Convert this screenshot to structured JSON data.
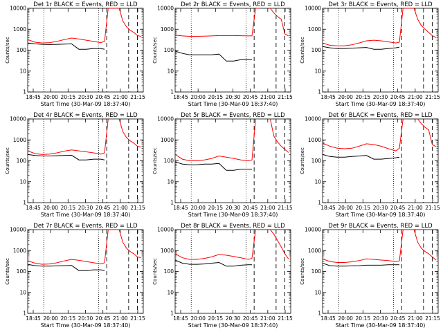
{
  "colors": {
    "events": "#000000",
    "lld": "#ff0000",
    "axes": "#000000",
    "background": "#ffffff"
  },
  "shared": {
    "ylabel": "Counts/sec",
    "xlabel": "Start Time (30-Mar-09 18:37:40)",
    "y_scale": "log",
    "ylim": [
      1,
      10000
    ],
    "y_ticks": [
      "1",
      "10",
      "100",
      "1000",
      "10000"
    ],
    "x_ticks": [
      "18:45",
      "20:00",
      "20:15",
      "20:30",
      "20:45",
      "21:00",
      "21:15"
    ],
    "x_range_minutes_from_start": [
      0,
      158
    ]
  },
  "chart_data": [
    {
      "type": "line",
      "title": "Det 1r BLACK = Events, RED = LLD",
      "x": [
        0,
        10,
        20,
        30,
        40,
        50,
        60,
        70,
        80,
        90,
        100,
        105,
        110,
        115,
        120,
        125,
        130,
        135,
        140,
        145,
        150,
        155
      ],
      "series": [
        {
          "name": "Events",
          "color": "#000000",
          "values": [
            220,
            200,
            190,
            185,
            190,
            195,
            200,
            110,
            110,
            120,
            120,
            110,
            null,
            null,
            null,
            null,
            null,
            null,
            null,
            null,
            null,
            null
          ]
        },
        {
          "name": "LLD",
          "color": "#ff0000",
          "values": [
            320,
            240,
            220,
            230,
            260,
            320,
            380,
            340,
            300,
            260,
            230,
            260,
            10000,
            10000,
            10000,
            10000,
            2500,
            1300,
            900,
            700,
            500,
            450
          ]
        }
      ]
    },
    {
      "type": "line",
      "title": "Det 2r BLACK = Events, RED = LLD",
      "x": [
        0,
        10,
        20,
        30,
        40,
        50,
        60,
        70,
        80,
        90,
        100,
        105,
        110,
        115,
        120,
        125,
        130,
        135,
        140,
        145,
        150,
        155
      ],
      "series": [
        {
          "name": "Events",
          "color": "#000000",
          "values": [
            90,
            70,
            60,
            60,
            60,
            60,
            65,
            30,
            30,
            35,
            35,
            35,
            null,
            null,
            null,
            null,
            null,
            null,
            null,
            null,
            null,
            null
          ]
        },
        {
          "name": "LLD",
          "color": "#ff0000",
          "values": [
            520,
            480,
            460,
            460,
            470,
            480,
            500,
            500,
            500,
            490,
            480,
            480,
            10000,
            10000,
            null,
            null,
            10000,
            6000,
            4000,
            3000,
            600,
            480
          ]
        }
      ]
    },
    {
      "type": "line",
      "title": "Det 3r BLACK = Events, RED = LLD",
      "x": [
        0,
        10,
        20,
        30,
        40,
        50,
        60,
        70,
        80,
        90,
        100,
        105,
        110,
        115,
        120,
        125,
        130,
        135,
        140,
        145,
        150,
        155
      ],
      "series": [
        {
          "name": "Events",
          "color": "#000000",
          "values": [
            150,
            130,
            120,
            120,
            125,
            130,
            135,
            110,
            110,
            120,
            130,
            140,
            null,
            null,
            null,
            null,
            null,
            null,
            null,
            null,
            null,
            null
          ]
        },
        {
          "name": "LLD",
          "color": "#ff0000",
          "values": [
            220,
            170,
            160,
            160,
            180,
            220,
            280,
            300,
            280,
            250,
            220,
            240,
            10000,
            10000,
            10000,
            10000,
            3000,
            1500,
            1000,
            700,
            500,
            400
          ]
        }
      ]
    },
    {
      "type": "line",
      "title": "Det 4r BLACK = Events, RED = LLD",
      "x": [
        0,
        10,
        20,
        30,
        40,
        50,
        60,
        70,
        80,
        90,
        100,
        105,
        110,
        115,
        120,
        125,
        130,
        135,
        140,
        145,
        150,
        155
      ],
      "series": [
        {
          "name": "Events",
          "color": "#000000",
          "values": [
            200,
            180,
            170,
            170,
            175,
            180,
            185,
            110,
            110,
            120,
            120,
            110,
            null,
            null,
            null,
            null,
            null,
            null,
            null,
            null,
            null,
            null
          ]
        },
        {
          "name": "LLD",
          "color": "#ff0000",
          "values": [
            300,
            220,
            200,
            210,
            240,
            290,
            330,
            300,
            270,
            240,
            210,
            240,
            10000,
            10000,
            10000,
            10000,
            2500,
            1300,
            900,
            700,
            500,
            450
          ]
        }
      ]
    },
    {
      "type": "line",
      "title": "Det 5r BLACK = Events, RED = LLD",
      "x": [
        0,
        10,
        20,
        30,
        40,
        50,
        60,
        70,
        80,
        90,
        100,
        105,
        110,
        115,
        120,
        125,
        130,
        135,
        140,
        145,
        150,
        155
      ],
      "series": [
        {
          "name": "Events",
          "color": "#000000",
          "values": [
            90,
            70,
            65,
            65,
            70,
            70,
            75,
            35,
            35,
            40,
            40,
            40,
            null,
            null,
            null,
            null,
            null,
            null,
            null,
            null,
            null,
            null
          ]
        },
        {
          "name": "LLD",
          "color": "#ff0000",
          "values": [
            200,
            120,
            100,
            100,
            110,
            130,
            170,
            150,
            130,
            110,
            100,
            110,
            10000,
            10000,
            null,
            null,
            10000,
            1500,
            800,
            500,
            350,
            250
          ]
        }
      ]
    },
    {
      "type": "line",
      "title": "Det 6r BLACK = Events, RED = LLD",
      "x": [
        0,
        10,
        20,
        30,
        40,
        50,
        60,
        70,
        80,
        90,
        100,
        105,
        110,
        115,
        120,
        125,
        130,
        135,
        140,
        145,
        150,
        155
      ],
      "series": [
        {
          "name": "Events",
          "color": "#000000",
          "values": [
            200,
            160,
            150,
            150,
            160,
            170,
            180,
            120,
            120,
            130,
            140,
            150,
            null,
            null,
            null,
            null,
            null,
            null,
            null,
            null,
            null,
            null
          ]
        },
        {
          "name": "LLD",
          "color": "#ff0000",
          "values": [
            700,
            500,
            400,
            380,
            400,
            500,
            650,
            600,
            500,
            380,
            300,
            400,
            10000,
            10000,
            null,
            null,
            10000,
            6000,
            4000,
            3000,
            600,
            480
          ]
        }
      ]
    },
    {
      "type": "line",
      "title": "Det 7r BLACK = Events, RED = LLD",
      "x": [
        0,
        10,
        20,
        30,
        40,
        50,
        60,
        70,
        80,
        90,
        100,
        105,
        110,
        115,
        120,
        125,
        130,
        135,
        140,
        145,
        150,
        155
      ],
      "series": [
        {
          "name": "Events",
          "color": "#000000",
          "values": [
            220,
            190,
            180,
            180,
            185,
            190,
            195,
            110,
            110,
            120,
            120,
            110,
            null,
            null,
            null,
            null,
            null,
            null,
            null,
            null,
            null,
            null
          ]
        },
        {
          "name": "LLD",
          "color": "#ff0000",
          "values": [
            330,
            250,
            220,
            230,
            260,
            320,
            380,
            340,
            300,
            260,
            230,
            260,
            10000,
            10000,
            10000,
            10000,
            2500,
            1300,
            900,
            700,
            500,
            450
          ]
        }
      ]
    },
    {
      "type": "line",
      "title": "Det 8r BLACK = Events, RED = LLD",
      "x": [
        0,
        10,
        20,
        30,
        40,
        50,
        60,
        70,
        80,
        90,
        100,
        105,
        110,
        115,
        120,
        125,
        130,
        135,
        140,
        145,
        150,
        155
      ],
      "series": [
        {
          "name": "Events",
          "color": "#000000",
          "values": [
            350,
            250,
            220,
            220,
            230,
            250,
            270,
            180,
            180,
            200,
            210,
            210,
            null,
            null,
            null,
            null,
            null,
            null,
            null,
            null,
            null,
            null
          ]
        },
        {
          "name": "LLD",
          "color": "#ff0000",
          "values": [
            700,
            450,
            380,
            380,
            420,
            500,
            650,
            600,
            520,
            450,
            380,
            420,
            10000,
            10000,
            null,
            null,
            10000,
            6000,
            3000,
            1500,
            700,
            400
          ]
        }
      ]
    },
    {
      "type": "line",
      "title": "Det 9r BLACK = Events, RED = LLD",
      "x": [
        0,
        10,
        20,
        30,
        40,
        50,
        60,
        70,
        80,
        90,
        100,
        105,
        110,
        115,
        120,
        125,
        130,
        135,
        140,
        145,
        150,
        155
      ],
      "series": [
        {
          "name": "Events",
          "color": "#000000",
          "values": [
            250,
            190,
            180,
            180,
            185,
            190,
            200,
            200,
            200,
            210,
            210,
            210,
            null,
            null,
            null,
            null,
            null,
            null,
            null,
            null,
            null,
            null
          ]
        },
        {
          "name": "LLD",
          "color": "#ff0000",
          "values": [
            400,
            300,
            270,
            270,
            290,
            330,
            400,
            380,
            350,
            330,
            300,
            320,
            10000,
            10000,
            10000,
            10000,
            2500,
            1300,
            900,
            700,
            500,
            350
          ]
        }
      ]
    }
  ]
}
